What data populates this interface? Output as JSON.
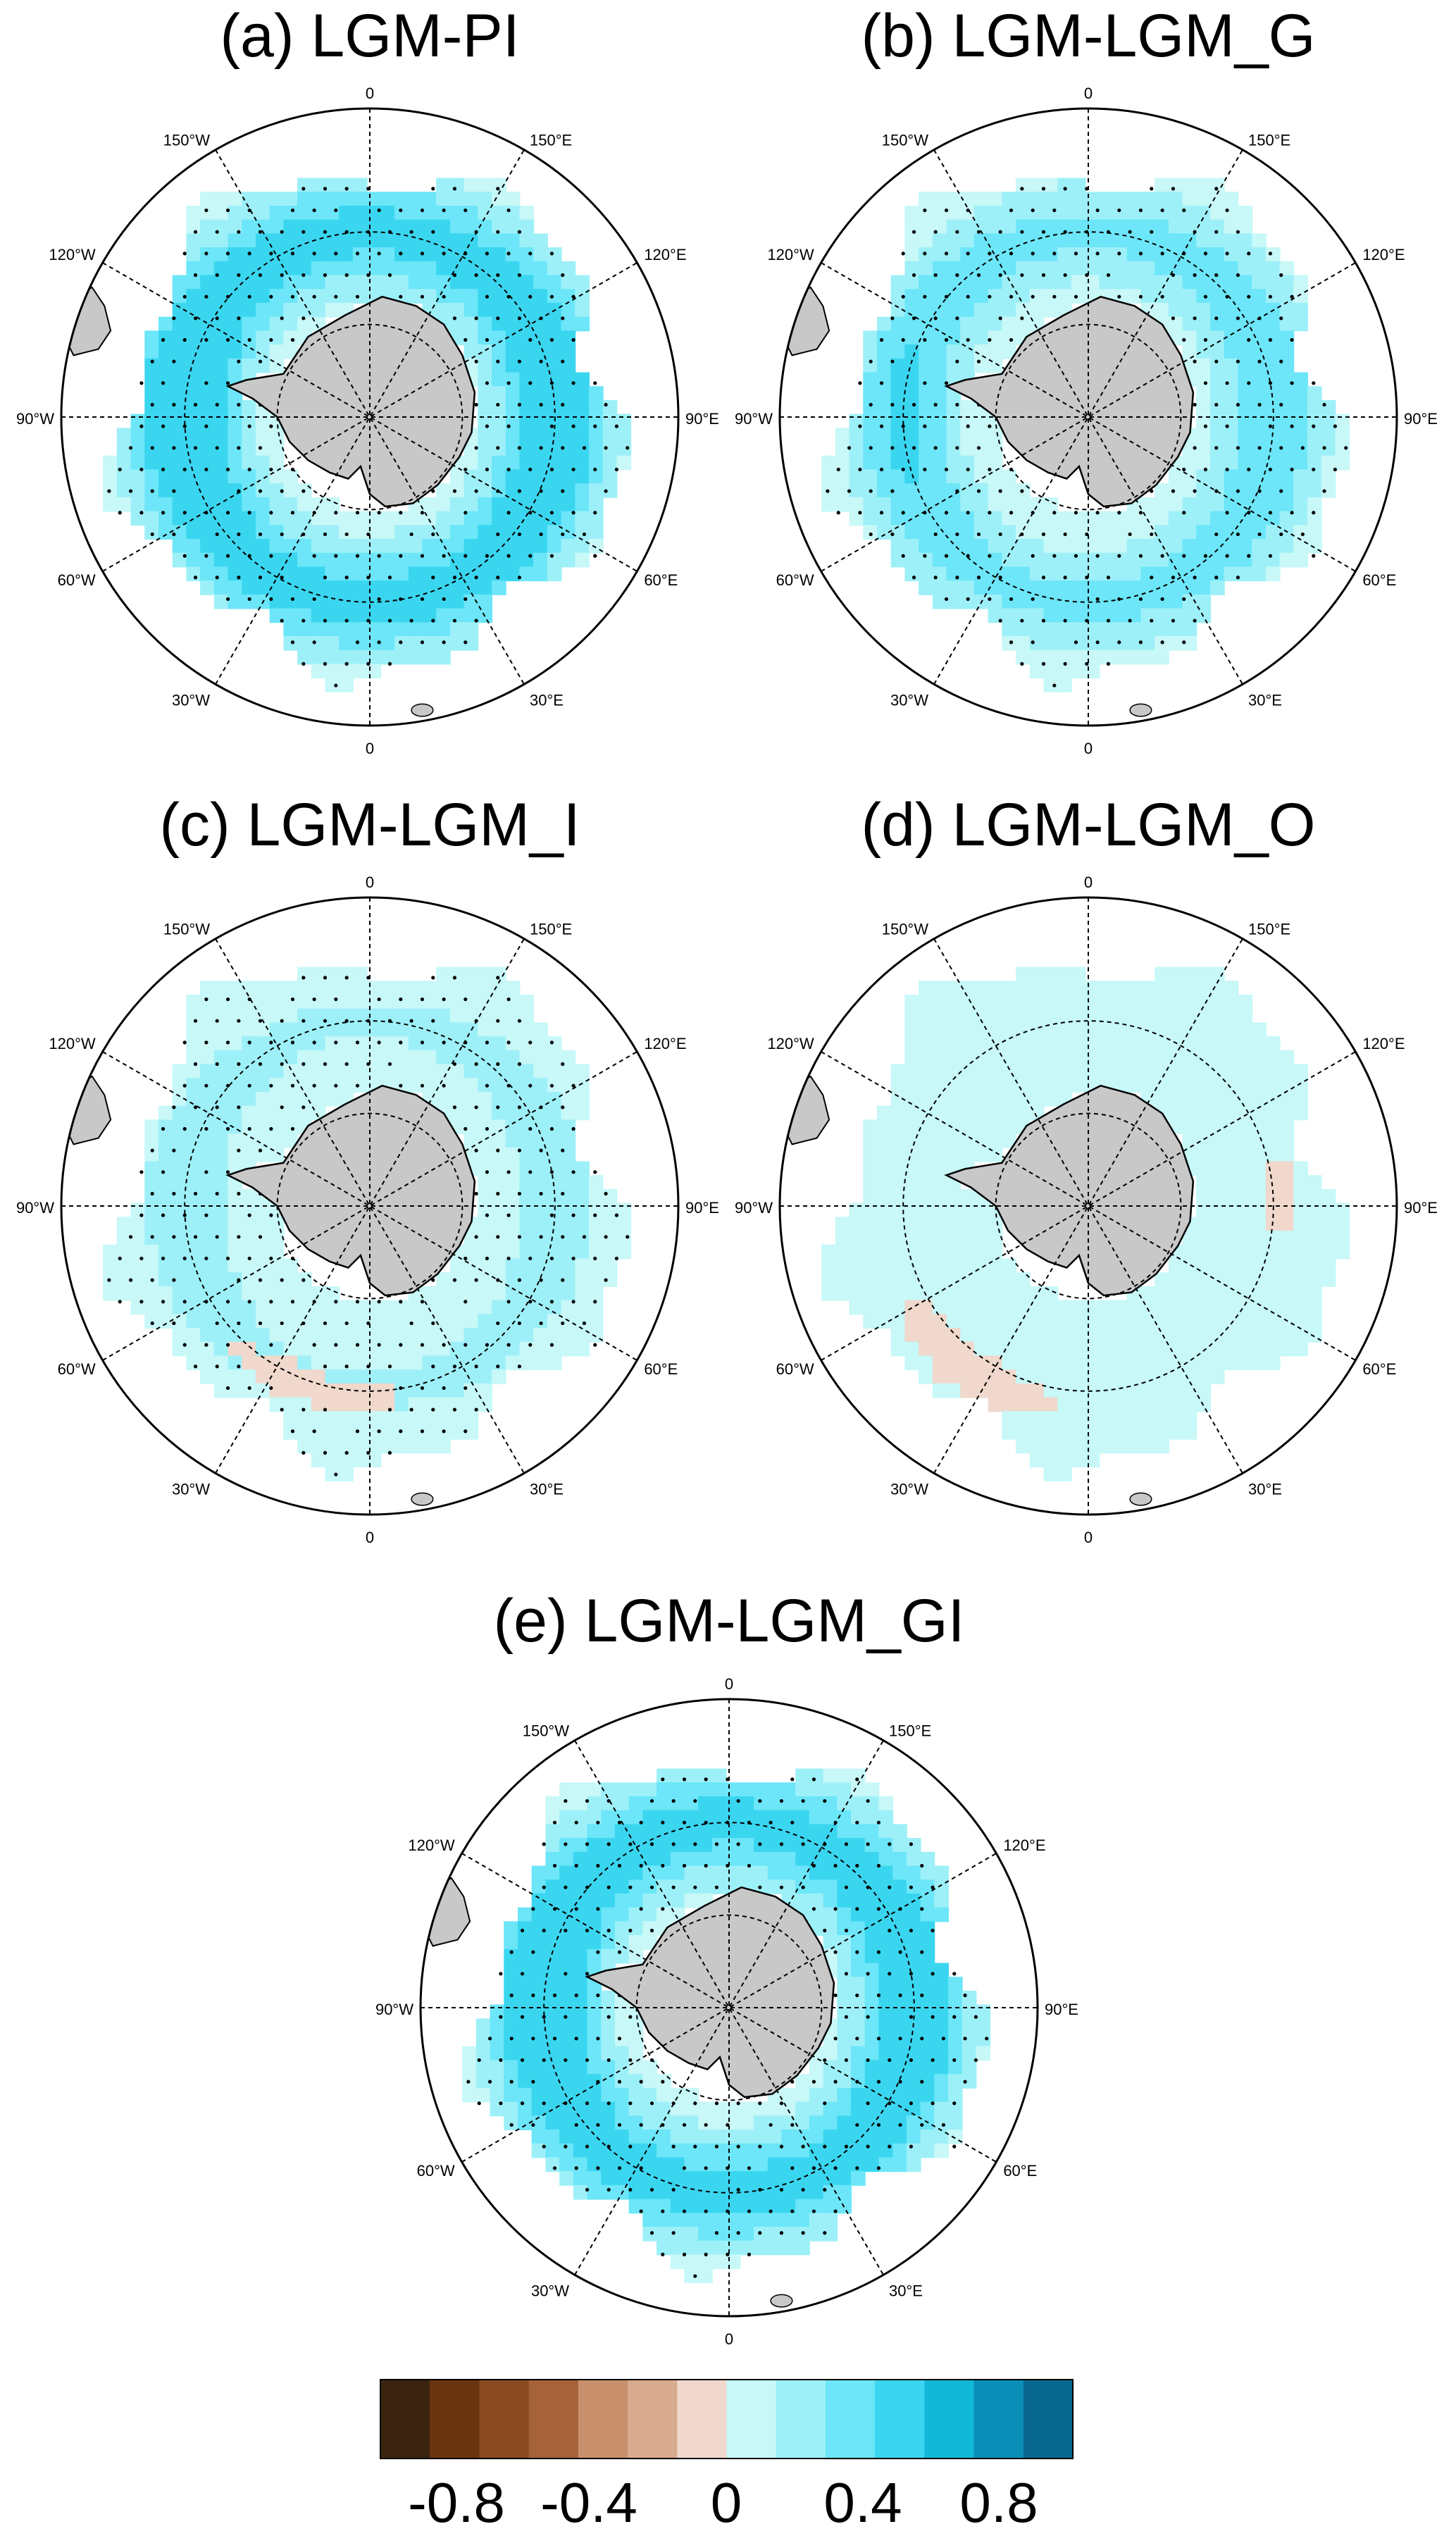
{
  "panels": [
    {
      "id": "a",
      "title": "(a) LGM-PI",
      "pattern": "all_positive_strong"
    },
    {
      "id": "b",
      "title": "(b) LGM-LGM_G",
      "pattern": "all_positive_medium"
    },
    {
      "id": "c",
      "title": "(c) LGM-LGM_I",
      "pattern": "positive_with_negative_band_atlantic"
    },
    {
      "id": "d",
      "title": "(d) LGM-LGM_O",
      "pattern": "weak_positive_with_negative_bands"
    },
    {
      "id": "e",
      "title": "(e) LGM-LGM_GI",
      "pattern": "all_positive_strong"
    }
  ],
  "longitude_labels": {
    "top": "0",
    "bottom": "0",
    "east_90": "90°E",
    "west_90": "90°W",
    "east_30": "30°E",
    "east_60": "60°E",
    "east_120": "120°E",
    "east_150": "150°E",
    "west_30": "30°W",
    "west_60": "60°W",
    "west_120": "120°W",
    "west_150": "150°W"
  },
  "colorbar": {
    "tick_labels": [
      "-0.8",
      "-0.4",
      "0",
      "0.4",
      "0.8"
    ],
    "colors": [
      "#3a2410",
      "#6b3410",
      "#8a4a22",
      "#a6623a",
      "#c8906c",
      "#d8aa8e",
      "#f0d8cc",
      "#c8f8f8",
      "#9ef0f8",
      "#6ce6f8",
      "#3ad6f0",
      "#12b8d8",
      "#0a90b8",
      "#086890"
    ]
  },
  "colors": {
    "land": "#c8c8c8",
    "coast": "#000000",
    "ocean_edge": "#a8a8a8"
  }
}
